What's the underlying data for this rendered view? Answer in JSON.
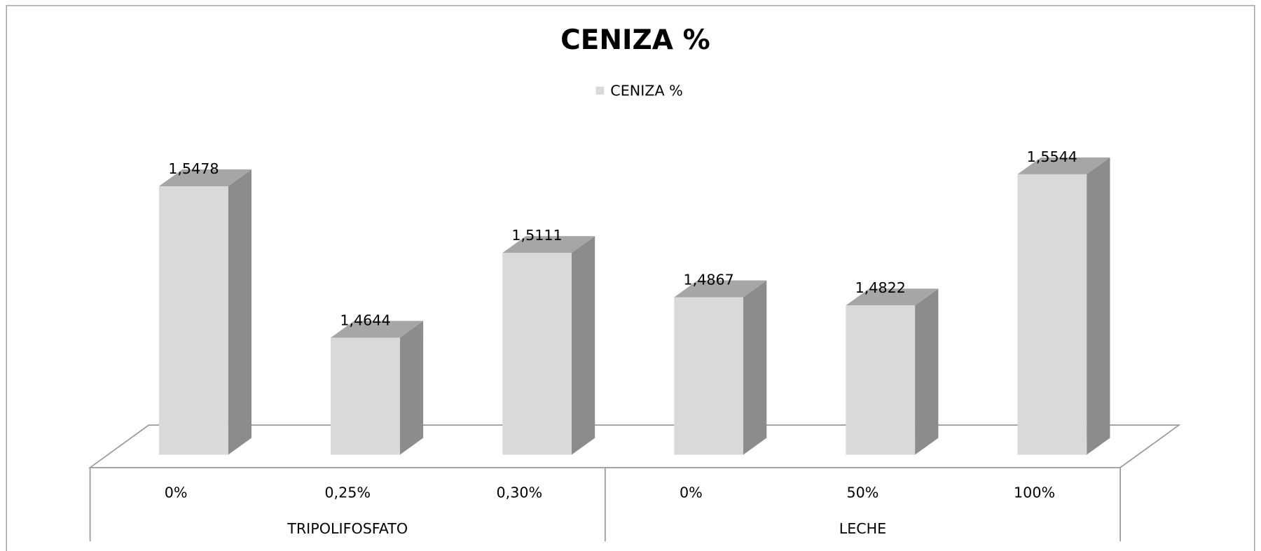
{
  "chart_data": {
    "type": "bar",
    "title": "CENIZA %",
    "categories": [
      "0%",
      "0,25%",
      "0,30%",
      "0%",
      "50%",
      "100%"
    ],
    "groups": [
      "TRIPOLIFOSFATO",
      "LECHE"
    ],
    "series": [
      {
        "name": "CENIZA %",
        "color": "#d9d9d9",
        "values": [
          1.5478,
          1.4644,
          1.5111,
          1.4867,
          1.4822,
          1.5544
        ],
        "value_labels": [
          "1,5478",
          "1,4644",
          "1,5111",
          "1,4867",
          "1,4822",
          "1,5544"
        ]
      }
    ],
    "ylim": [
      1.4,
      1.6
    ],
    "legend": "top"
  }
}
